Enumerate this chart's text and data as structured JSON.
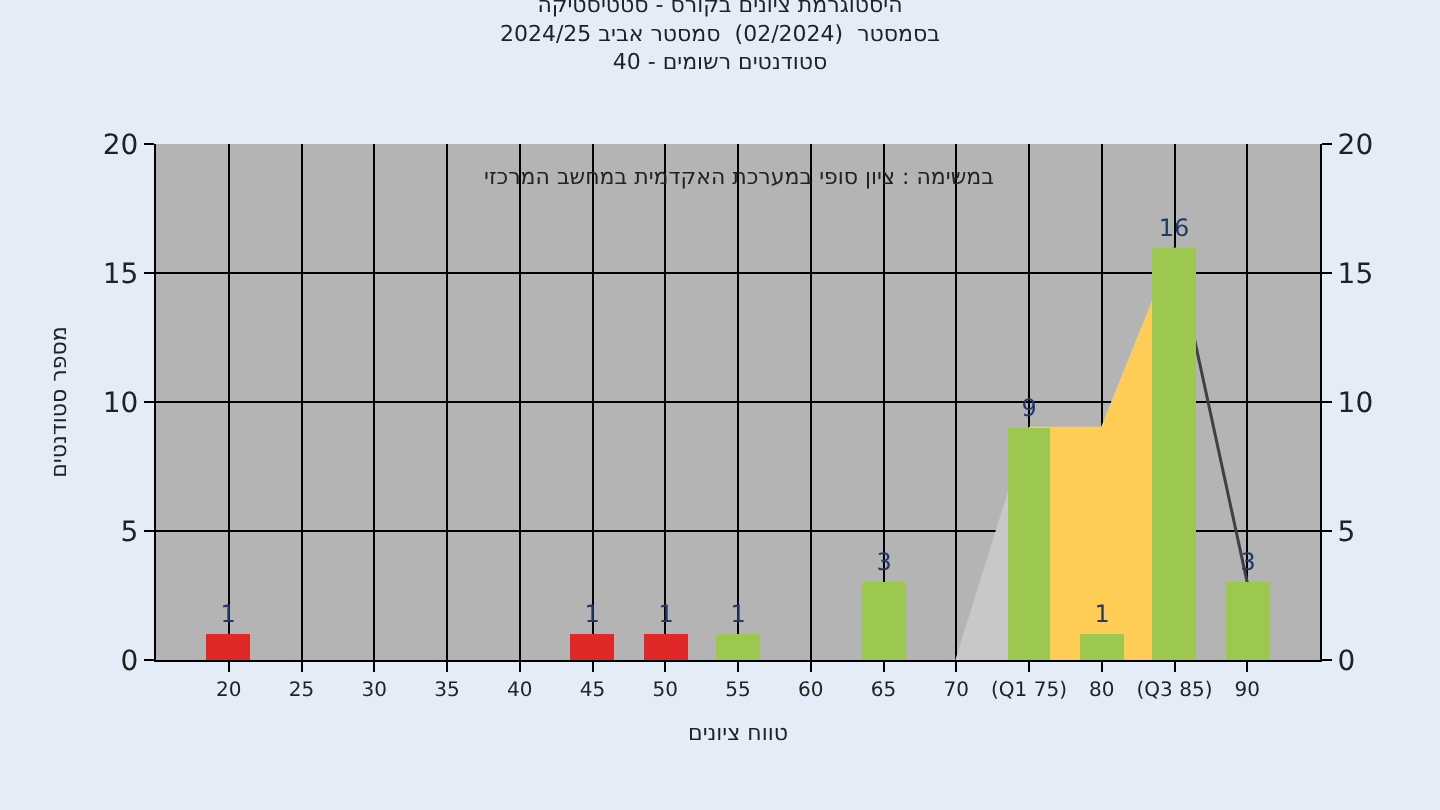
{
  "chart_data": {
    "type": "bar",
    "title": "היסטוגרמת ציונים בקורס - סטטיסטיקה\nבסמסטר  (02/2024)  סמסטר אביב 2024/25\nסטודנטים רשומים - 40",
    "xlabel": "טווח ציונים",
    "ylabel": "מספר סטודנטים",
    "annotations": [
      "במשימה : ציון סופי במערכת האקדמית במחשב המרכזי"
    ],
    "x": [
      20,
      45,
      50,
      55,
      65,
      75,
      80,
      85,
      90
    ],
    "series": [
      {
        "type": "area",
        "color": "#c8c8c8",
        "x": [
          70,
          75
        ],
        "values": [
          0,
          9
        ]
      },
      {
        "type": "area",
        "color": "#ffcc55",
        "x": [
          75,
          80,
          85
        ],
        "values": [
          9,
          9,
          16
        ]
      },
      {
        "type": "line",
        "color": "#404040",
        "x": [
          85,
          90
        ],
        "values": [
          16,
          3
        ]
      },
      {
        "values": [
          1,
          1,
          1,
          1,
          3,
          9,
          1,
          16,
          3
        ],
        "value_labels": [
          "1",
          "1",
          "1",
          "1",
          "3",
          "9",
          "1",
          "16",
          "3"
        ],
        "colors": [
          "#e02828",
          "#e02828",
          "#e02828",
          "#9cc850",
          "#9cc850",
          "#9cc850",
          "#9cc850",
          "#9cc850",
          "#9cc850"
        ]
      }
    ],
    "xlim": [
      15,
      95
    ],
    "xticks": [
      20,
      25,
      30,
      35,
      40,
      45,
      50,
      55,
      60,
      65,
      70,
      {
        "value": 75,
        "label": "(Q1 75)"
      },
      80,
      {
        "value": 85,
        "label": "(Q3 85)"
      },
      90
    ],
    "ylim": [
      0,
      20
    ],
    "yticks": [
      0,
      5,
      10,
      15,
      20
    ],
    "y2lim": [
      0,
      20
    ],
    "y2ticks": [
      0,
      5,
      10,
      15,
      20
    ],
    "grid": true
  }
}
